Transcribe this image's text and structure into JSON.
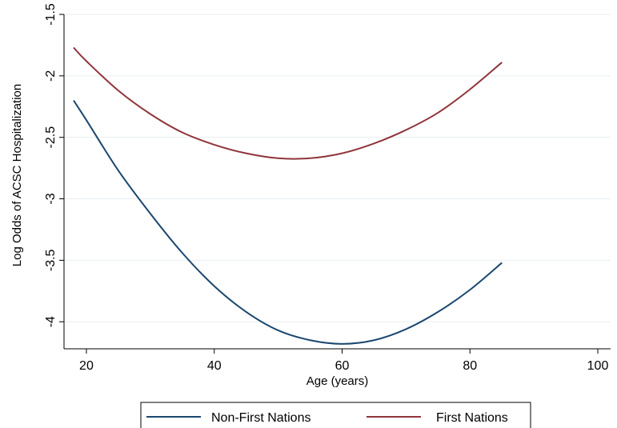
{
  "chart_data": {
    "type": "line",
    "title": "",
    "xlabel": "Age (years)",
    "ylabel": "Log Odds of ACSC Hospitalization",
    "xlim": [
      16.5,
      102
    ],
    "ylim": [
      -4.22,
      -1.5
    ],
    "xticks": [
      20,
      40,
      60,
      80,
      100
    ],
    "yticks": [
      -4,
      -3.5,
      -3,
      -2.5,
      -2,
      -1.5
    ],
    "xtick_labels": [
      "20",
      "40",
      "60",
      "80",
      "100"
    ],
    "ytick_labels": [
      "-4",
      "-3.5",
      "-3",
      "-2.5",
      "-2",
      "-1.5"
    ],
    "grid": true,
    "legend_position": "bottom",
    "series": [
      {
        "name": "Non-First Nations",
        "color": "#1a476f",
        "x": [
          18,
          20,
          25,
          30,
          35,
          40,
          45,
          50,
          55,
          60,
          65,
          70,
          75,
          80,
          85
        ],
        "y": [
          -2.2,
          -2.36,
          -2.77,
          -3.12,
          -3.44,
          -3.71,
          -3.92,
          -4.07,
          -4.15,
          -4.18,
          -4.15,
          -4.06,
          -3.92,
          -3.74,
          -3.52
        ]
      },
      {
        "name": "First Nations",
        "color": "#90353b",
        "x": [
          18,
          20,
          25,
          30,
          35,
          40,
          45,
          50,
          55,
          60,
          65,
          70,
          75,
          80,
          85
        ],
        "y": [
          -1.77,
          -1.88,
          -2.12,
          -2.31,
          -2.46,
          -2.56,
          -2.63,
          -2.67,
          -2.67,
          -2.63,
          -2.55,
          -2.44,
          -2.3,
          -2.11,
          -1.89
        ]
      }
    ]
  }
}
